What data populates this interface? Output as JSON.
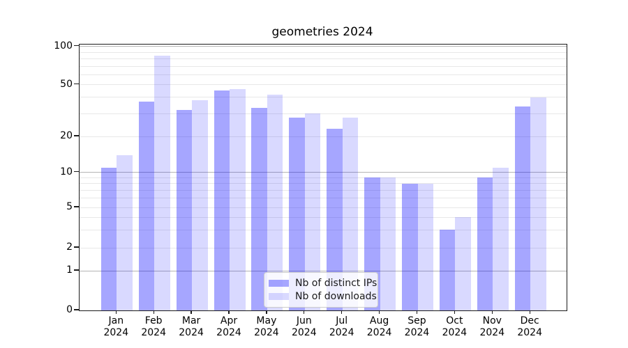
{
  "chart_data": {
    "type": "bar",
    "title": "geometries 2024",
    "categories": [
      "Jan",
      "Feb",
      "Mar",
      "Apr",
      "May",
      "Jun",
      "Jul",
      "Aug",
      "Sep",
      "Oct",
      "Nov",
      "Dec"
    ],
    "year_label": "2024",
    "series": [
      {
        "name": "Nb of distinct IPs",
        "color": "rgba(0,0,255,0.35)",
        "values": [
          11,
          37,
          32,
          45,
          33,
          28,
          23,
          9,
          8,
          3,
          9,
          34
        ]
      },
      {
        "name": "Nb of downloads",
        "color": "rgba(0,0,255,0.15)",
        "values": [
          14,
          85,
          38,
          46,
          42,
          30,
          28,
          9,
          8,
          4,
          11,
          40
        ]
      }
    ],
    "yaxis": {
      "scale": "symlog",
      "ylim": [
        0,
        100
      ],
      "tick_values": [
        100,
        50,
        20,
        10,
        5,
        2,
        1,
        0
      ],
      "tick_labels": [
        "100",
        "50",
        "20",
        "10",
        "5",
        "2",
        "1",
        "0"
      ],
      "major_gridlines": [
        1,
        10,
        100
      ],
      "minor_gridlines": [
        2,
        3,
        4,
        5,
        6,
        7,
        8,
        9,
        20,
        30,
        40,
        50,
        60,
        70,
        80,
        90
      ]
    },
    "xaxis": {
      "label_line2": "2024"
    },
    "legend": {
      "position": "lower-center"
    },
    "grid": true
  }
}
